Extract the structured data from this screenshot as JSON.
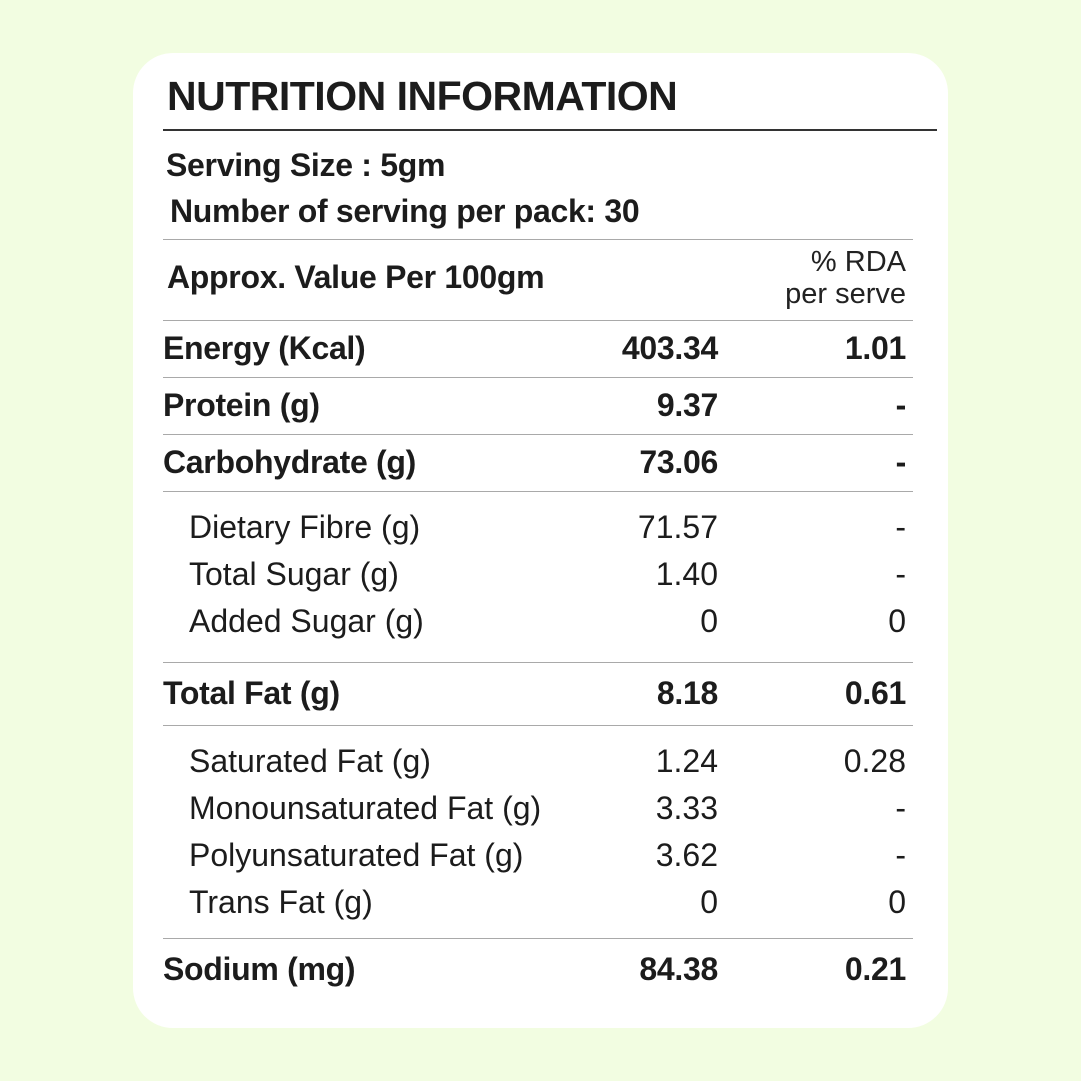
{
  "title": "NUTRITION INFORMATION",
  "serving_size": "Serving Size : 5gm",
  "servings_per_pack": "Number of serving per pack: 30",
  "table_header": {
    "label": "Approx. Value Per 100gm",
    "rda_line1": "% RDA",
    "rda_line2": "per serve"
  },
  "rows": [
    {
      "label": "Energy (Kcal)",
      "value": "403.34",
      "rda": "1.01"
    },
    {
      "label": "Protein (g)",
      "value": "9.37",
      "rda": "-"
    },
    {
      "label": "Carbohydrate (g)",
      "value": "73.06",
      "rda": "-"
    },
    {
      "label": "Dietary Fibre (g)",
      "value": "71.57",
      "rda": "-"
    },
    {
      "label": "Total Sugar (g)",
      "value": "1.40",
      "rda": "-"
    },
    {
      "label": "Added Sugar (g)",
      "value": "0",
      "rda": "0"
    },
    {
      "label": "Total Fat (g)",
      "value": "8.18",
      "rda": "0.61"
    },
    {
      "label": "Saturated Fat (g)",
      "value": "1.24",
      "rda": "0.28"
    },
    {
      "label": "Monounsaturated Fat (g)",
      "value": "3.33",
      "rda": "-"
    },
    {
      "label": "Polyunsaturated Fat (g)",
      "value": "3.62",
      "rda": "-"
    },
    {
      "label": "Trans Fat (g)",
      "value": "0",
      "rda": "0"
    },
    {
      "label": "Sodium (mg)",
      "value": "84.38",
      "rda": "0.21"
    }
  ]
}
